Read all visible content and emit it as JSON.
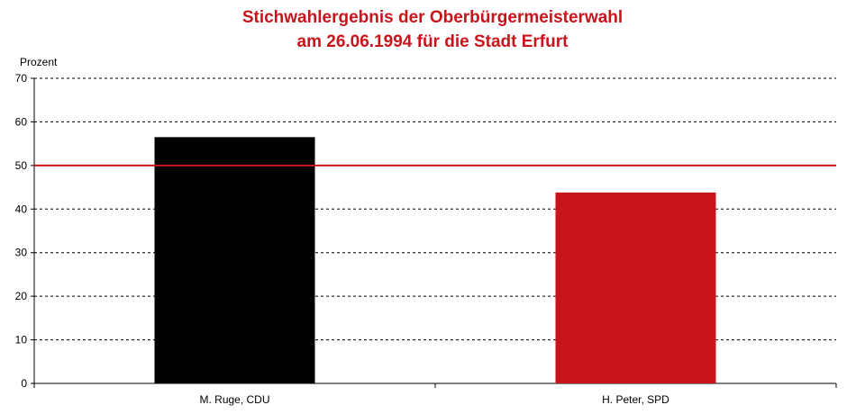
{
  "chart_data": {
    "type": "bar",
    "title": "Stichwahlergebnis der Oberbürgermeisterwahl",
    "subtitle": "am 26.06.1994 für die Stadt Erfurt",
    "ylabel": "Prozent",
    "xlabel": "",
    "categories": [
      "M. Ruge, CDU",
      "H. Peter, SPD"
    ],
    "values": [
      56.5,
      43.8
    ],
    "colors": [
      "#000000",
      "#c8141b"
    ],
    "ylim": [
      0,
      70
    ],
    "yticks": [
      0,
      10,
      20,
      30,
      40,
      50,
      60,
      70
    ],
    "reference_line": {
      "value": 50,
      "color": "#c8141b"
    },
    "grid": "dashed horizontal",
    "legend": "none"
  }
}
